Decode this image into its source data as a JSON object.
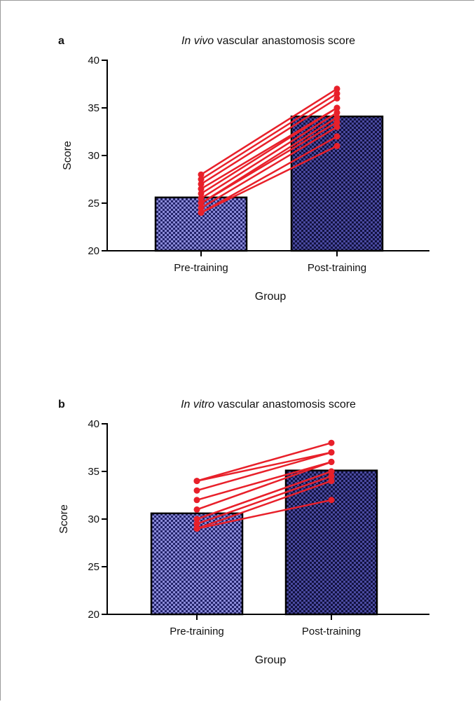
{
  "chart_data": [
    {
      "type": "bar",
      "panel": "a",
      "title_italic": "In vivo",
      "title_rest": " vascular anastomosis score",
      "xlabel": "Group",
      "ylabel": "Score",
      "ylim": [
        20,
        40
      ],
      "yticks": [
        20,
        25,
        30,
        35,
        40
      ],
      "categories": [
        "Pre-training",
        "Post-training"
      ],
      "values": [
        25.6,
        34.1
      ],
      "bar_colors": [
        "#5a5ab8",
        "#2a2a78"
      ],
      "paired_lines": [
        [
          24,
          31
        ],
        [
          24,
          32
        ],
        [
          24.5,
          33
        ],
        [
          25,
          33.5
        ],
        [
          25,
          34
        ],
        [
          25.5,
          34.5
        ],
        [
          26,
          35
        ],
        [
          26.5,
          35
        ],
        [
          27,
          36
        ],
        [
          27.5,
          36.5
        ],
        [
          28,
          37
        ]
      ],
      "line_color": "#e8202a"
    },
    {
      "type": "bar",
      "panel": "b",
      "title_italic": "In vitro",
      "title_rest": " vascular anastomosis score",
      "xlabel": "Group",
      "ylabel": "Score",
      "ylim": [
        20,
        40
      ],
      "yticks": [
        20,
        25,
        30,
        35,
        40
      ],
      "categories": [
        "Pre-training",
        "Post-training"
      ],
      "values": [
        30.6,
        35.1
      ],
      "bar_colors": [
        "#5a5ab8",
        "#2a2a78"
      ],
      "paired_lines": [
        [
          29,
          32
        ],
        [
          29,
          34
        ],
        [
          29.5,
          34.5
        ],
        [
          30,
          35
        ],
        [
          30,
          35
        ],
        [
          31,
          36
        ],
        [
          32,
          36
        ],
        [
          33,
          37
        ],
        [
          34,
          37
        ],
        [
          34,
          38
        ]
      ],
      "line_color": "#e8202a"
    }
  ]
}
